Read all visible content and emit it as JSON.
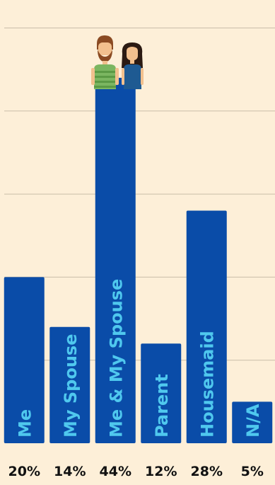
{
  "chart_data": {
    "type": "bar",
    "categories": [
      "Me",
      "My Spouse",
      "Me & My Spouse",
      "Parent",
      "Housemaid",
      "N/A"
    ],
    "values": [
      20,
      14,
      44,
      12,
      28,
      5
    ],
    "value_labels": [
      "20%",
      "14%",
      "44%",
      "12%",
      "28%",
      "5%"
    ],
    "ylim": [
      0,
      52
    ],
    "grid": true,
    "gridline_values": [
      10,
      20,
      30,
      40,
      50
    ],
    "annotations": [
      {
        "category": "Me & My Spouse",
        "icon": "couple-icon"
      }
    ],
    "colors": {
      "bar": "#0a4ca8",
      "bar_label": "#4fc8ee",
      "value_label": "#111111",
      "background": "#fdefd8",
      "gridline": "#c9bda9"
    }
  }
}
